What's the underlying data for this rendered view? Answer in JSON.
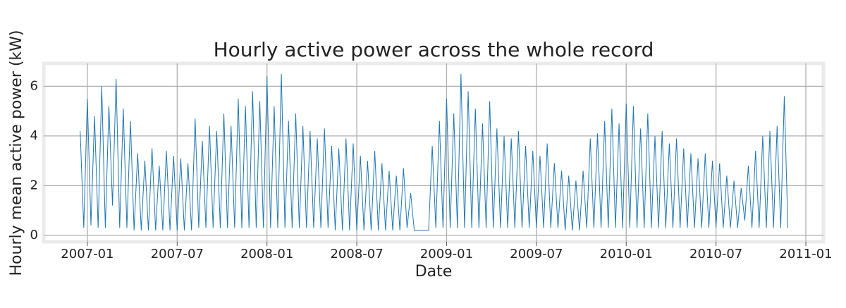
{
  "chart_data": {
    "type": "line",
    "title": "Hourly active power across the whole record",
    "x_label": "Date",
    "y_label": "Hourly mean active power (kW)",
    "color": "#1f77b4",
    "grid": true,
    "xlim": [
      2006.757,
      2011.098
    ],
    "ylim": [
      -0.26,
      6.92
    ],
    "xticks": [
      {
        "value": 2007.0,
        "label": "2007-01"
      },
      {
        "value": 2007.5,
        "label": "2007-07"
      },
      {
        "value": 2008.0,
        "label": "2008-01"
      },
      {
        "value": 2008.5,
        "label": "2008-07"
      },
      {
        "value": 2009.0,
        "label": "2009-01"
      },
      {
        "value": 2009.5,
        "label": "2009-07"
      },
      {
        "value": 2010.0,
        "label": "2010-01"
      },
      {
        "value": 2010.5,
        "label": "2010-07"
      },
      {
        "value": 2011.0,
        "label": "2011-01"
      }
    ],
    "yticks": [
      0,
      2,
      4,
      6
    ],
    "x": [
      2006.96,
      2006.98,
      2007.0,
      2007.02,
      2007.04,
      2007.06,
      2007.08,
      2007.1,
      2007.12,
      2007.14,
      2007.16,
      2007.18,
      2007.2,
      2007.22,
      2007.24,
      2007.26,
      2007.28,
      2007.3,
      2007.32,
      2007.34,
      2007.36,
      2007.38,
      2007.4,
      2007.42,
      2007.44,
      2007.46,
      2007.48,
      2007.5,
      2007.52,
      2007.54,
      2007.56,
      2007.58,
      2007.6,
      2007.62,
      2007.64,
      2007.66,
      2007.68,
      2007.7,
      2007.72,
      2007.74,
      2007.76,
      2007.78,
      2007.8,
      2007.82,
      2007.84,
      2007.86,
      2007.88,
      2007.9,
      2007.92,
      2007.94,
      2007.96,
      2007.98,
      2008.0,
      2008.02,
      2008.04,
      2008.06,
      2008.08,
      2008.1,
      2008.12,
      2008.14,
      2008.16,
      2008.18,
      2008.2,
      2008.22,
      2008.24,
      2008.26,
      2008.28,
      2008.3,
      2008.32,
      2008.34,
      2008.36,
      2008.38,
      2008.4,
      2008.42,
      2008.44,
      2008.46,
      2008.48,
      2008.5,
      2008.52,
      2008.54,
      2008.56,
      2008.58,
      2008.6,
      2008.62,
      2008.64,
      2008.66,
      2008.68,
      2008.7,
      2008.72,
      2008.74,
      2008.76,
      2008.78,
      2008.8,
      2008.82,
      2008.84,
      2008.86,
      2008.88,
      2008.9,
      2008.92,
      2008.94,
      2008.96,
      2008.98,
      2009.0,
      2009.02,
      2009.04,
      2009.06,
      2009.08,
      2009.1,
      2009.12,
      2009.14,
      2009.16,
      2009.18,
      2009.2,
      2009.22,
      2009.24,
      2009.26,
      2009.28,
      2009.3,
      2009.32,
      2009.34,
      2009.36,
      2009.38,
      2009.4,
      2009.42,
      2009.44,
      2009.46,
      2009.48,
      2009.5,
      2009.52,
      2009.54,
      2009.56,
      2009.58,
      2009.6,
      2009.62,
      2009.64,
      2009.66,
      2009.68,
      2009.7,
      2009.72,
      2009.74,
      2009.76,
      2009.78,
      2009.8,
      2009.82,
      2009.84,
      2009.86,
      2009.88,
      2009.9,
      2009.92,
      2009.94,
      2009.96,
      2009.98,
      2010.0,
      2010.02,
      2010.04,
      2010.06,
      2010.08,
      2010.1,
      2010.12,
      2010.14,
      2010.16,
      2010.18,
      2010.2,
      2010.22,
      2010.24,
      2010.26,
      2010.28,
      2010.3,
      2010.32,
      2010.34,
      2010.36,
      2010.38,
      2010.4,
      2010.42,
      2010.44,
      2010.46,
      2010.48,
      2010.5,
      2010.52,
      2010.54,
      2010.56,
      2010.58,
      2010.6,
      2010.62,
      2010.64,
      2010.66,
      2010.68,
      2010.7,
      2010.72,
      2010.74,
      2010.76,
      2010.78,
      2010.8,
      2010.82,
      2010.84,
      2010.86,
      2010.88,
      2010.9
    ],
    "values": [
      4.2,
      0.3,
      5.5,
      0.4,
      4.8,
      0.3,
      6.0,
      0.3,
      5.2,
      1.2,
      6.3,
      0.3,
      5.1,
      0.3,
      4.6,
      0.2,
      3.3,
      0.2,
      3.0,
      0.2,
      3.5,
      0.2,
      2.8,
      0.2,
      3.4,
      0.2,
      3.2,
      0.2,
      3.1,
      0.2,
      2.9,
      0.2,
      4.7,
      0.3,
      3.8,
      0.3,
      4.4,
      0.3,
      4.2,
      0.3,
      4.9,
      0.3,
      4.4,
      0.3,
      5.5,
      0.3,
      5.2,
      0.3,
      5.8,
      0.3,
      5.4,
      0.3,
      6.4,
      0.3,
      5.2,
      0.3,
      6.5,
      0.3,
      4.6,
      0.3,
      4.9,
      0.3,
      4.4,
      0.3,
      4.2,
      0.3,
      3.9,
      0.3,
      4.3,
      0.3,
      3.6,
      0.2,
      3.5,
      0.2,
      3.9,
      0.2,
      3.7,
      0.2,
      3.2,
      0.2,
      3.0,
      0.2,
      3.4,
      0.2,
      2.9,
      0.2,
      2.6,
      0.2,
      2.4,
      0.2,
      2.7,
      0.3,
      1.7,
      0.2,
      0.2,
      0.2,
      0.2,
      0.2,
      3.6,
      0.3,
      4.6,
      0.3,
      5.5,
      0.3,
      4.9,
      0.3,
      6.5,
      0.3,
      5.8,
      0.3,
      5.1,
      0.3,
      4.5,
      0.3,
      5.4,
      0.3,
      4.3,
      0.3,
      4.0,
      0.3,
      3.9,
      0.3,
      4.2,
      0.3,
      3.6,
      0.3,
      3.4,
      0.3,
      3.2,
      0.3,
      3.7,
      0.3,
      2.9,
      0.3,
      2.6,
      0.2,
      2.4,
      0.2,
      2.2,
      0.2,
      2.6,
      0.3,
      3.9,
      0.3,
      4.1,
      0.3,
      4.6,
      0.3,
      5.1,
      0.3,
      4.5,
      0.3,
      5.3,
      0.3,
      5.2,
      0.3,
      4.3,
      0.3,
      4.9,
      0.3,
      4.0,
      0.3,
      4.2,
      0.3,
      3.7,
      0.3,
      3.9,
      0.3,
      3.5,
      0.3,
      3.3,
      0.3,
      3.1,
      0.3,
      3.3,
      0.3,
      3.0,
      0.3,
      2.9,
      0.3,
      2.4,
      0.3,
      2.2,
      0.3,
      1.9,
      0.6,
      2.8,
      0.3,
      3.4,
      0.3,
      4.0,
      0.3,
      4.2,
      0.3,
      4.4,
      0.3,
      5.6,
      0.3
    ]
  }
}
